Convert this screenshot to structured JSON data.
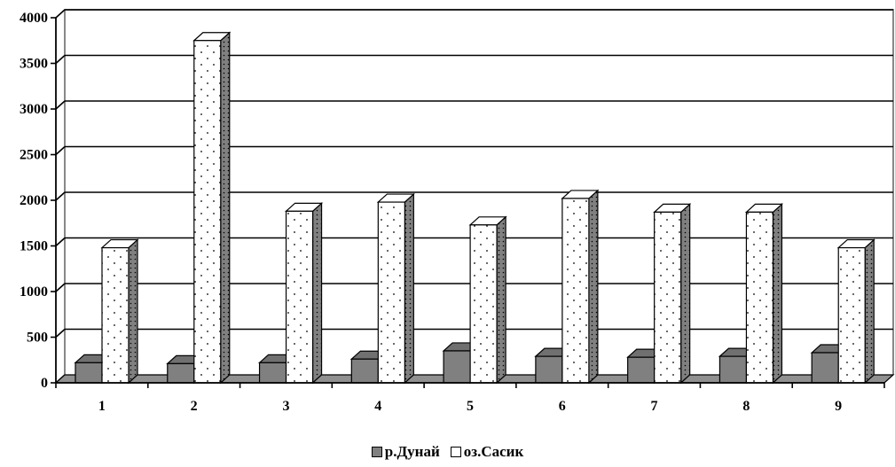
{
  "chart_data": {
    "type": "bar",
    "title": "",
    "xlabel": "",
    "ylabel": "",
    "categories": [
      "1",
      "2",
      "3",
      "4",
      "5",
      "6",
      "7",
      "8",
      "9"
    ],
    "y_ticks": [
      "0",
      "500",
      "1000",
      "1500",
      "2000",
      "2500",
      "3000",
      "3500",
      "4000"
    ],
    "ylim": [
      0,
      4000
    ],
    "grid": true,
    "three_d": true,
    "legend_position": "bottom",
    "series": [
      {
        "name": "р.Дунай",
        "values": [
          220,
          210,
          220,
          260,
          350,
          290,
          280,
          290,
          330
        ],
        "color": "#808080",
        "pattern": "solid"
      },
      {
        "name": "оз.Сасик",
        "values": [
          1480,
          3750,
          1880,
          1980,
          1730,
          2020,
          1870,
          1870,
          1480
        ],
        "color": "#ffffff",
        "pattern": "dotted"
      }
    ]
  }
}
